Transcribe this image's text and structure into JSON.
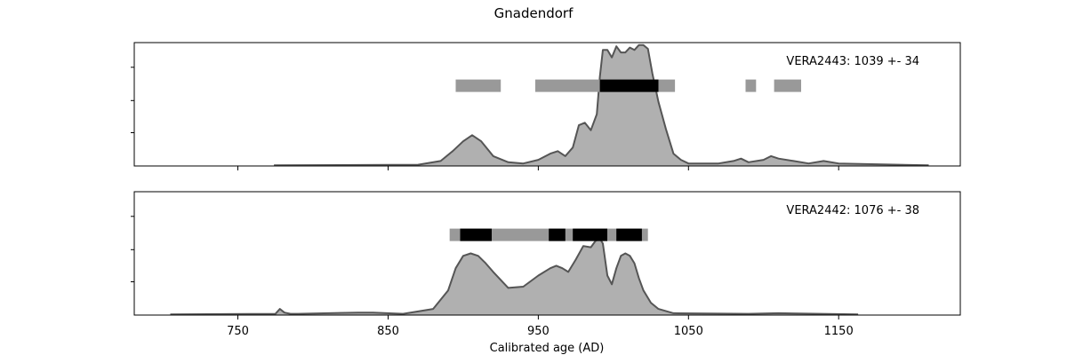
{
  "figure": {
    "title": "Gnadendorf",
    "xlabel": "Calibrated age (AD)"
  },
  "chart_data": [
    {
      "type": "area",
      "label": "VERA2443: 1039 +- 34",
      "xlim": [
        681,
        1231
      ],
      "ylim": [
        0,
        1
      ],
      "x_ticks": [
        750,
        850,
        950,
        1050,
        1150
      ],
      "x_tick_labels_shown": false,
      "y_ticks": [
        0.27,
        0.53,
        0.8
      ],
      "colors": {
        "fill": "#b0b0b0",
        "line": "#555555",
        "range68": "#000000",
        "range95": "#999999"
      },
      "range95": [
        [
          895,
          925
        ],
        [
          948,
          1041
        ],
        [
          1088,
          1095
        ],
        [
          1107,
          1125
        ]
      ],
      "range68": [
        [
          991,
          1030
        ]
      ],
      "density": {
        "x": [
          774,
          870,
          885,
          893,
          900,
          906,
          912,
          920,
          930,
          940,
          950,
          958,
          963,
          968,
          973,
          977,
          981,
          985,
          989,
          991,
          993,
          996,
          999,
          1002,
          1005,
          1008,
          1011,
          1014,
          1017,
          1020,
          1023,
          1026,
          1030,
          1035,
          1040,
          1045,
          1050,
          1070,
          1080,
          1085,
          1090,
          1100,
          1105,
          1110,
          1120,
          1130,
          1140,
          1150,
          1210
        ],
        "y": [
          0.005,
          0.01,
          0.04,
          0.12,
          0.2,
          0.25,
          0.2,
          0.08,
          0.03,
          0.02,
          0.05,
          0.1,
          0.12,
          0.08,
          0.15,
          0.33,
          0.35,
          0.29,
          0.42,
          0.72,
          0.94,
          0.94,
          0.88,
          0.97,
          0.92,
          0.92,
          0.96,
          0.94,
          0.98,
          0.98,
          0.95,
          0.75,
          0.52,
          0.3,
          0.1,
          0.05,
          0.02,
          0.02,
          0.04,
          0.06,
          0.03,
          0.05,
          0.08,
          0.06,
          0.04,
          0.02,
          0.04,
          0.02,
          0.005
        ]
      }
    },
    {
      "type": "area",
      "label": "VERA2442: 1076 +- 38",
      "xlim": [
        681,
        1231
      ],
      "ylim": [
        0,
        1
      ],
      "x_ticks": [
        750,
        850,
        950,
        1050,
        1150
      ],
      "x_tick_labels_shown": true,
      "y_ticks": [
        0.27,
        0.53,
        0.8
      ],
      "colors": {
        "fill": "#b0b0b0",
        "line": "#555555",
        "range68": "#000000",
        "range95": "#999999"
      },
      "range95": [
        [
          891,
          1023
        ]
      ],
      "range68": [
        [
          898,
          919
        ],
        [
          957,
          968
        ],
        [
          973,
          996
        ],
        [
          1002,
          1019
        ]
      ],
      "density": {
        "x": [
          705,
          775,
          778,
          781,
          785,
          790,
          830,
          840,
          860,
          880,
          890,
          895,
          900,
          905,
          910,
          915,
          920,
          930,
          940,
          950,
          958,
          962,
          966,
          970,
          975,
          980,
          985,
          988,
          991,
          993,
          996,
          999,
          1002,
          1005,
          1008,
          1011,
          1014,
          1017,
          1020,
          1025,
          1030,
          1040,
          1090,
          1110,
          1163
        ],
        "y": [
          0.005,
          0.01,
          0.05,
          0.02,
          0.01,
          0.01,
          0.02,
          0.02,
          0.01,
          0.05,
          0.2,
          0.38,
          0.48,
          0.5,
          0.48,
          0.42,
          0.35,
          0.22,
          0.23,
          0.32,
          0.38,
          0.4,
          0.38,
          0.35,
          0.45,
          0.56,
          0.55,
          0.6,
          0.62,
          0.58,
          0.32,
          0.25,
          0.38,
          0.48,
          0.5,
          0.48,
          0.42,
          0.3,
          0.2,
          0.1,
          0.05,
          0.015,
          0.01,
          0.015,
          0.005
        ]
      }
    }
  ]
}
